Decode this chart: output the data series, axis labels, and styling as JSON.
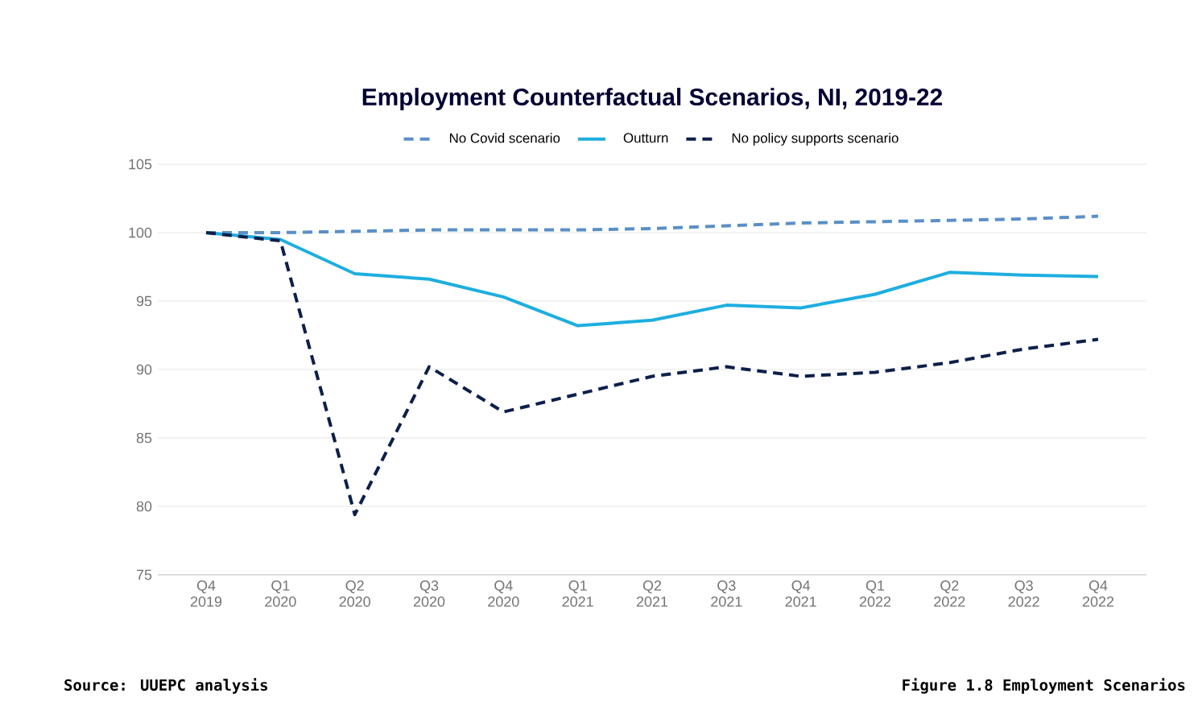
{
  "chart_data": {
    "type": "line",
    "title": "Employment Counterfactual Scenarios, NI, 2019-22",
    "categories": [
      "Q4 2019",
      "Q1 2020",
      "Q2 2020",
      "Q3 2020",
      "Q4 2020",
      "Q1 2021",
      "Q2 2021",
      "Q3 2021",
      "Q4 2021",
      "Q1 2022",
      "Q2 2022",
      "Q3 2022",
      "Q4 2022"
    ],
    "series": [
      {
        "name": "No Covid scenario",
        "color": "#5b8fc7",
        "line_style": "dashed",
        "values": [
          100,
          100,
          100.1,
          100.2,
          100.2,
          100.2,
          100.3,
          100.5,
          100.7,
          100.8,
          100.9,
          101.0,
          101.2
        ]
      },
      {
        "name": "Outturn",
        "color": "#1eaee0",
        "line_style": "solid",
        "values": [
          100,
          99.5,
          97.0,
          96.6,
          95.3,
          93.2,
          93.6,
          94.7,
          94.5,
          95.5,
          97.1,
          96.9,
          96.8
        ]
      },
      {
        "name": "No policy supports scenario",
        "color": "#0d1f4a",
        "line_style": "dashed",
        "values": [
          100,
          99.4,
          79.4,
          90.2,
          86.9,
          88.2,
          89.5,
          90.2,
          89.5,
          89.8,
          90.5,
          91.5,
          92.2
        ]
      }
    ],
    "ylim": [
      75,
      105
    ],
    "yticks": [
      75,
      80,
      85,
      90,
      95,
      100,
      105
    ],
    "grid": "y",
    "legend": "top",
    "annotations": [
      "Source: UUEPC analysis",
      "Figure 1.8 Employment Scenarios"
    ]
  }
}
